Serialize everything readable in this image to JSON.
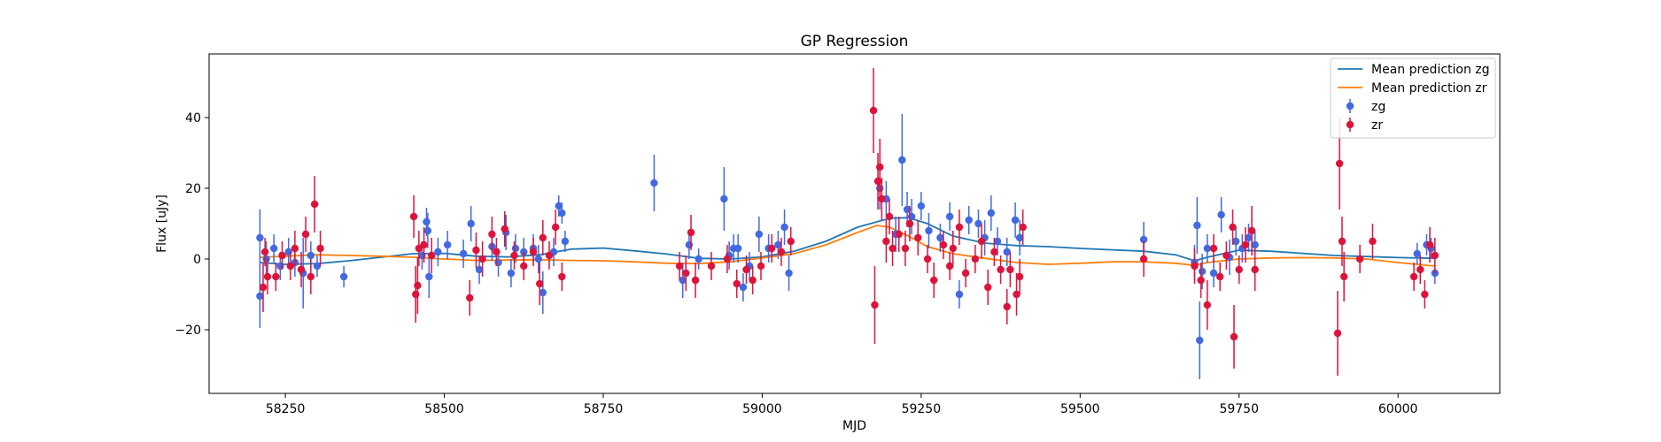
{
  "chart_data": {
    "type": "scatter",
    "title": "GP Regression",
    "xlabel": "MJD",
    "ylabel": "Flux [uJy]",
    "xlim": [
      58130,
      60160
    ],
    "ylim": [
      -38,
      58
    ],
    "xticks": [
      58250,
      58500,
      58750,
      59000,
      59250,
      59500,
      59750,
      60000
    ],
    "yticks": [
      -20,
      0,
      20,
      40
    ],
    "ytick_labels": [
      "−20",
      "0",
      "20",
      "40"
    ],
    "grid": false,
    "legend_position": "top-right",
    "legend": [
      {
        "label": "Mean prediction zg",
        "kind": "line",
        "color": "#1f77b4"
      },
      {
        "label": "Mean prediction zr",
        "kind": "line",
        "color": "#ff7f0e"
      },
      {
        "label": "zg",
        "kind": "marker",
        "color": "#4169e1"
      },
      {
        "label": "zr",
        "kind": "marker",
        "color": "#dc143c"
      }
    ],
    "lines": [
      {
        "name": "Mean prediction zg",
        "color": "#1f77b4",
        "x": [
          58210,
          58250,
          58300,
          58350,
          58400,
          58450,
          58500,
          58550,
          58600,
          58650,
          58700,
          58750,
          58800,
          58850,
          58900,
          58950,
          59000,
          59050,
          59100,
          59150,
          59200,
          59230,
          59260,
          59300,
          59350,
          59400,
          59450,
          59500,
          59550,
          59600,
          59650,
          59680,
          59700,
          59750,
          59800,
          59850,
          59900,
          59950,
          60000,
          60058
        ],
        "y": [
          -1,
          -1.5,
          -1.3,
          -0.5,
          0.5,
          1.5,
          1.6,
          0.8,
          0.6,
          1.2,
          2.8,
          3.1,
          2.3,
          1.4,
          0.2,
          0.0,
          0.6,
          2.2,
          5,
          9,
          11.5,
          11.7,
          10,
          6.5,
          4.5,
          3.8,
          3.5,
          3,
          2.6,
          2.2,
          1.2,
          -0.5,
          0.5,
          2.5,
          2.2,
          1.6,
          1.0,
          0.7,
          0.4,
          0.2
        ]
      },
      {
        "name": "Mean prediction zr",
        "color": "#ff7f0e",
        "x": [
          58210,
          58250,
          58300,
          58350,
          58400,
          58450,
          58500,
          58550,
          58600,
          58650,
          58700,
          58750,
          58800,
          58850,
          58900,
          58950,
          59000,
          59050,
          59100,
          59150,
          59180,
          59200,
          59230,
          59260,
          59300,
          59350,
          59400,
          59450,
          59500,
          59550,
          59600,
          59650,
          59680,
          59700,
          59750,
          59800,
          59850,
          59900,
          59950,
          60000,
          60058
        ],
        "y": [
          0.5,
          0.8,
          1.2,
          1.0,
          0.8,
          0.5,
          0.0,
          -0.4,
          -0.3,
          -0.2,
          -0.4,
          -0.5,
          -0.8,
          -1.2,
          -1.3,
          -0.8,
          0.3,
          1.5,
          4,
          7.5,
          9.5,
          9,
          6.5,
          3.5,
          1.5,
          0.2,
          -1.0,
          -1.5,
          -1.2,
          -0.8,
          -0.8,
          -1.2,
          -1.8,
          -1.0,
          0.0,
          0.3,
          0.4,
          0.3,
          0.0,
          -1.0,
          -2.0
        ]
      }
    ],
    "series": [
      {
        "name": "zg",
        "color": "#4169e1",
        "points": [
          [
            58210,
            6,
            8
          ],
          [
            58210,
            -10.5,
            9
          ],
          [
            58220,
            0,
            5
          ],
          [
            58232,
            3,
            4
          ],
          [
            58242,
            -2,
            4
          ],
          [
            58255,
            2,
            4
          ],
          [
            58265,
            -1,
            4
          ],
          [
            58278,
            -4,
            10
          ],
          [
            58290,
            1,
            4
          ],
          [
            58300,
            -2,
            3
          ],
          [
            58342,
            -5,
            3
          ],
          [
            58465,
            1,
            4
          ],
          [
            58472,
            10.5,
            4
          ],
          [
            58474,
            8,
            5
          ],
          [
            58476,
            -5,
            6
          ],
          [
            58490,
            2,
            4
          ],
          [
            58505,
            4,
            4
          ],
          [
            58530,
            1.5,
            4
          ],
          [
            58542,
            10,
            5
          ],
          [
            58555,
            -3,
            4
          ],
          [
            58575,
            3.5,
            4
          ],
          [
            58585,
            -1,
            4
          ],
          [
            58597,
            7.5,
            5
          ],
          [
            58605,
            -4,
            4
          ],
          [
            58612,
            3,
            4
          ],
          [
            58625,
            2,
            4
          ],
          [
            58640,
            3,
            4
          ],
          [
            58648,
            0,
            4
          ],
          [
            58655,
            -9.5,
            6
          ],
          [
            58672,
            2,
            4
          ],
          [
            58680,
            15,
            3
          ],
          [
            58685,
            13,
            3
          ],
          [
            58690,
            5,
            3
          ],
          [
            58830,
            21.5,
            8
          ],
          [
            58875,
            -6,
            5
          ],
          [
            58885,
            4,
            4
          ],
          [
            58900,
            0,
            3
          ],
          [
            58940,
            17,
            9
          ],
          [
            58948,
            1,
            4
          ],
          [
            58955,
            3,
            4
          ],
          [
            58962,
            3,
            4
          ],
          [
            58970,
            -8,
            4
          ],
          [
            58980,
            -2,
            4
          ],
          [
            58995,
            7,
            5
          ],
          [
            59010,
            3,
            4
          ],
          [
            59025,
            4,
            4
          ],
          [
            59035,
            9,
            5
          ],
          [
            59042,
            -4,
            5
          ],
          [
            59185,
            20,
            6
          ],
          [
            59195,
            17,
            5
          ],
          [
            59210,
            7,
            5
          ],
          [
            59220,
            28,
            13
          ],
          [
            59228,
            14,
            5
          ],
          [
            59235,
            12,
            5
          ],
          [
            59250,
            15,
            4
          ],
          [
            59262,
            8,
            5
          ],
          [
            59280,
            6,
            4
          ],
          [
            59295,
            12,
            4
          ],
          [
            59310,
            -10,
            4
          ],
          [
            59325,
            11,
            4
          ],
          [
            59340,
            10,
            4
          ],
          [
            59350,
            6,
            5
          ],
          [
            59360,
            13,
            5
          ],
          [
            59370,
            5,
            4
          ],
          [
            59385,
            2,
            4
          ],
          [
            59398,
            11,
            5
          ],
          [
            59405,
            6,
            5
          ],
          [
            59600,
            5.5,
            5
          ],
          [
            59680,
            -1,
            5
          ],
          [
            59684,
            9.5,
            8
          ],
          [
            59688,
            -23,
            11
          ],
          [
            59692,
            -3.5,
            5
          ],
          [
            59700,
            3,
            4
          ],
          [
            59710,
            -4,
            4
          ],
          [
            59722,
            12.5,
            5
          ],
          [
            59735,
            0.5,
            5
          ],
          [
            59745,
            5,
            4
          ],
          [
            59755,
            3,
            4
          ],
          [
            59765,
            6,
            4
          ],
          [
            59775,
            4,
            4
          ],
          [
            60030,
            1.5,
            3
          ],
          [
            60045,
            4,
            3
          ],
          [
            60052,
            3,
            3
          ],
          [
            60058,
            -4,
            3
          ]
        ]
      },
      {
        "name": "zr",
        "color": "#dc143c",
        "points": [
          [
            58215,
            -8,
            7
          ],
          [
            58218,
            2,
            4
          ],
          [
            58222,
            -5,
            5
          ],
          [
            58235,
            -5,
            4
          ],
          [
            58245,
            1,
            4
          ],
          [
            58258,
            -2,
            4
          ],
          [
            58265,
            3,
            5
          ],
          [
            58275,
            -3,
            5
          ],
          [
            58282,
            7,
            5
          ],
          [
            58290,
            -5,
            5
          ],
          [
            58296,
            15.5,
            8
          ],
          [
            58305,
            3,
            5
          ],
          [
            58452,
            12,
            6
          ],
          [
            58455,
            -10,
            8
          ],
          [
            58458,
            -7.5,
            8
          ],
          [
            58460,
            3,
            5
          ],
          [
            58468,
            4,
            5
          ],
          [
            58480,
            1,
            5
          ],
          [
            58540,
            -11,
            5
          ],
          [
            58550,
            2.5,
            5
          ],
          [
            58560,
            0,
            5
          ],
          [
            58575,
            7,
            5
          ],
          [
            58582,
            2,
            4
          ],
          [
            58595,
            8.5,
            5
          ],
          [
            58610,
            1,
            4
          ],
          [
            58625,
            -2,
            4
          ],
          [
            58640,
            2,
            4
          ],
          [
            58650,
            -7,
            6
          ],
          [
            58655,
            6,
            5
          ],
          [
            58665,
            1,
            4
          ],
          [
            58675,
            9,
            5
          ],
          [
            58685,
            -5,
            4
          ],
          [
            58870,
            -2,
            4
          ],
          [
            58880,
            -4,
            5
          ],
          [
            58888,
            7.5,
            5
          ],
          [
            58895,
            -6,
            5
          ],
          [
            58920,
            -2,
            4
          ],
          [
            58945,
            0,
            4
          ],
          [
            58960,
            -7,
            4
          ],
          [
            58975,
            -3,
            4
          ],
          [
            58985,
            -6,
            4
          ],
          [
            58998,
            -2,
            4
          ],
          [
            59015,
            3,
            4
          ],
          [
            59030,
            2,
            4
          ],
          [
            59045,
            5,
            4
          ],
          [
            59175,
            42,
            12
          ],
          [
            59177,
            -13,
            11
          ],
          [
            59182,
            22,
            8
          ],
          [
            59185,
            26,
            8
          ],
          [
            59188,
            17,
            6
          ],
          [
            59195,
            5,
            6
          ],
          [
            59200,
            12,
            5
          ],
          [
            59205,
            3,
            5
          ],
          [
            59215,
            7,
            5
          ],
          [
            59225,
            3,
            5
          ],
          [
            59232,
            10,
            5
          ],
          [
            59245,
            6,
            5
          ],
          [
            59260,
            0,
            4
          ],
          [
            59270,
            -6,
            5
          ],
          [
            59285,
            4,
            4
          ],
          [
            59295,
            -2,
            4
          ],
          [
            59300,
            3,
            5
          ],
          [
            59310,
            9,
            5
          ],
          [
            59320,
            -4,
            4
          ],
          [
            59335,
            0,
            4
          ],
          [
            59345,
            5,
            5
          ],
          [
            59355,
            -8,
            5
          ],
          [
            59365,
            2,
            4
          ],
          [
            59375,
            -3,
            4
          ],
          [
            59385,
            -13.5,
            5
          ],
          [
            59390,
            -3,
            5
          ],
          [
            59400,
            -10,
            6
          ],
          [
            59405,
            -5,
            5
          ],
          [
            59410,
            9,
            5
          ],
          [
            59600,
            0,
            5
          ],
          [
            59680,
            -2,
            5
          ],
          [
            59690,
            -6,
            5
          ],
          [
            59700,
            -13,
            7
          ],
          [
            59710,
            3,
            4
          ],
          [
            59720,
            -5,
            4
          ],
          [
            59730,
            1,
            4
          ],
          [
            59740,
            9,
            5
          ],
          [
            59742,
            -22,
            9
          ],
          [
            59750,
            -3,
            4
          ],
          [
            59760,
            4,
            5
          ],
          [
            59770,
            8,
            7
          ],
          [
            59775,
            -3,
            6
          ],
          [
            59905,
            -21,
            12
          ],
          [
            59908,
            27,
            13
          ],
          [
            59912,
            5,
            7
          ],
          [
            59915,
            -5,
            7
          ],
          [
            59940,
            0,
            4
          ],
          [
            59960,
            5,
            5
          ],
          [
            60025,
            -5,
            4
          ],
          [
            60035,
            -3,
            4
          ],
          [
            60042,
            -10,
            4
          ],
          [
            60050,
            4,
            5
          ],
          [
            60058,
            1,
            5
          ]
        ]
      }
    ]
  }
}
